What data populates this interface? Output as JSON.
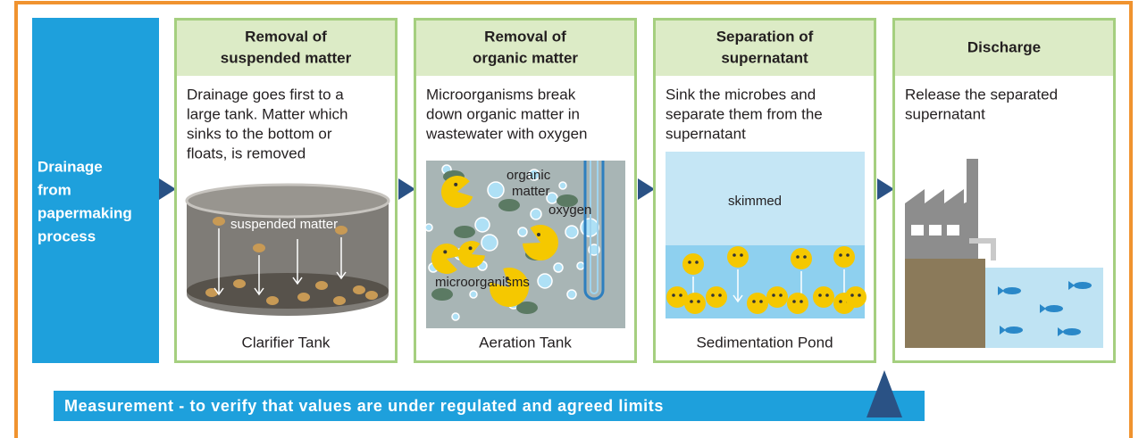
{
  "source": {
    "lines": [
      "Drainage",
      "from",
      "papermaking",
      "process"
    ]
  },
  "stages": [
    {
      "title": [
        "Removal of",
        "suspended matter"
      ],
      "description": [
        "Drainage goes first to a",
        "large tank. Matter which",
        "sinks to the bottom or",
        "floats, is removed"
      ],
      "labels": [
        "suspended matter"
      ],
      "caption": "Clarifier Tank"
    },
    {
      "title": [
        "Removal of",
        "organic matter"
      ],
      "description": [
        "Microorganisms break",
        "down organic matter in",
        "wastewater with oxygen"
      ],
      "labels": [
        "organic",
        "matter",
        "oxygen",
        "microorganisms"
      ],
      "caption": "Aeration Tank"
    },
    {
      "title": [
        "Separation of",
        "supernatant"
      ],
      "description": [
        "Sink the microbes and",
        "separate them from the",
        "supernatant"
      ],
      "labels": [
        "skimmed"
      ],
      "caption": "Sedimentation Pond"
    },
    {
      "title": [
        "Discharge"
      ],
      "description": [
        "Release the separated",
        "supernatant"
      ],
      "caption": ""
    }
  ],
  "measurement": "Measurement - to verify that values are under regulated and agreed limits"
}
